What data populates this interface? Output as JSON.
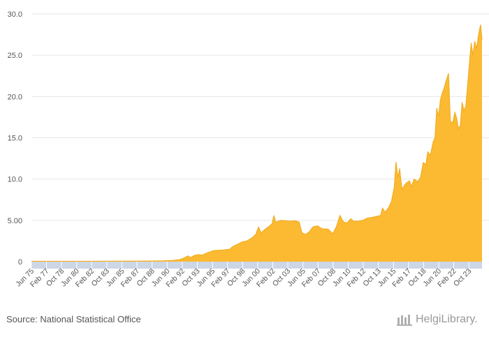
{
  "source": "Source: National Statistical Office",
  "brand": {
    "name": "HelgiLibrary."
  },
  "colors": {
    "fill": "#FBBA32",
    "stroke": "#F2A818",
    "axis_band": "#CDD6E6",
    "grid": "#E6E6E6"
  },
  "chart_data": {
    "type": "area",
    "title": "",
    "xlabel": "",
    "ylabel": "",
    "ylim": [
      0,
      30
    ],
    "yticks": [
      {
        "value": 0,
        "label": "0"
      },
      {
        "value": 5,
        "label": "5.00"
      },
      {
        "value": 10,
        "label": "10.0"
      },
      {
        "value": 15,
        "label": "15.0"
      },
      {
        "value": 20,
        "label": "20.0"
      },
      {
        "value": 25,
        "label": "25.0"
      },
      {
        "value": 30,
        "label": "30.0"
      }
    ],
    "xlim": [
      1975.42,
      2025.2
    ],
    "xticks": [
      {
        "label": "Jun 75",
        "t": 1975.42
      },
      {
        "label": "Feb 77",
        "t": 1977.08
      },
      {
        "label": "Oct 78",
        "t": 1978.75
      },
      {
        "label": "Jun 80",
        "t": 1980.42
      },
      {
        "label": "Feb 82",
        "t": 1982.08
      },
      {
        "label": "Oct 83",
        "t": 1983.75
      },
      {
        "label": "Jun 85",
        "t": 1985.42
      },
      {
        "label": "Feb 87",
        "t": 1987.08
      },
      {
        "label": "Oct 88",
        "t": 1988.75
      },
      {
        "label": "Jun 90",
        "t": 1990.42
      },
      {
        "label": "Feb 92",
        "t": 1992.08
      },
      {
        "label": "Oct 93",
        "t": 1993.75
      },
      {
        "label": "Jun 95",
        "t": 1995.42
      },
      {
        "label": "Feb 97",
        "t": 1997.08
      },
      {
        "label": "Oct 98",
        "t": 1998.75
      },
      {
        "label": "Jun 00",
        "t": 2000.42
      },
      {
        "label": "Feb 02",
        "t": 2002.08
      },
      {
        "label": "Oct 03",
        "t": 2003.75
      },
      {
        "label": "Jun 05",
        "t": 2005.42
      },
      {
        "label": "Feb 07",
        "t": 2007.08
      },
      {
        "label": "Oct 08",
        "t": 2008.75
      },
      {
        "label": "Jun 10",
        "t": 2010.42
      },
      {
        "label": "Feb 12",
        "t": 2012.08
      },
      {
        "label": "Oct 13",
        "t": 2013.75
      },
      {
        "label": "Jun 15",
        "t": 2015.42
      },
      {
        "label": "Feb 17",
        "t": 2017.08
      },
      {
        "label": "Oct 18",
        "t": 2018.75
      },
      {
        "label": "Jun 20",
        "t": 2020.42
      },
      {
        "label": "Feb 22",
        "t": 2022.08
      },
      {
        "label": "Oct 23",
        "t": 2023.75
      }
    ],
    "series": [
      {
        "name": "value",
        "points": [
          [
            1975.42,
            0.05
          ],
          [
            1980.0,
            0.05
          ],
          [
            1985.0,
            0.06
          ],
          [
            1988.0,
            0.08
          ],
          [
            1990.0,
            0.1
          ],
          [
            1991.0,
            0.15
          ],
          [
            1991.8,
            0.25
          ],
          [
            1992.3,
            0.45
          ],
          [
            1992.7,
            0.7
          ],
          [
            1993.0,
            0.5
          ],
          [
            1993.4,
            0.75
          ],
          [
            1993.8,
            0.85
          ],
          [
            1994.3,
            0.8
          ],
          [
            1994.8,
            1.05
          ],
          [
            1995.3,
            1.25
          ],
          [
            1995.6,
            1.35
          ],
          [
            1996.5,
            1.4
          ],
          [
            1997.3,
            1.5
          ],
          [
            1997.7,
            1.85
          ],
          [
            1998.2,
            2.1
          ],
          [
            1998.7,
            2.4
          ],
          [
            1999.2,
            2.5
          ],
          [
            1999.8,
            2.9
          ],
          [
            2000.2,
            3.3
          ],
          [
            2000.5,
            4.2
          ],
          [
            2000.8,
            3.5
          ],
          [
            2001.2,
            3.9
          ],
          [
            2001.7,
            4.3
          ],
          [
            2002.0,
            4.6
          ],
          [
            2002.2,
            5.6
          ],
          [
            2002.4,
            4.8
          ],
          [
            2003.0,
            5.0
          ],
          [
            2004.0,
            4.9
          ],
          [
            2004.6,
            4.95
          ],
          [
            2005.0,
            4.8
          ],
          [
            2005.3,
            3.5
          ],
          [
            2005.7,
            3.3
          ],
          [
            2006.1,
            3.6
          ],
          [
            2006.5,
            4.2
          ],
          [
            2007.0,
            4.35
          ],
          [
            2007.5,
            4.0
          ],
          [
            2008.2,
            3.95
          ],
          [
            2008.7,
            3.4
          ],
          [
            2009.1,
            4.2
          ],
          [
            2009.5,
            5.6
          ],
          [
            2009.9,
            4.8
          ],
          [
            2010.3,
            4.7
          ],
          [
            2010.7,
            5.2
          ],
          [
            2011.0,
            4.9
          ],
          [
            2011.5,
            4.9
          ],
          [
            2012.0,
            5.0
          ],
          [
            2012.6,
            5.3
          ],
          [
            2013.0,
            5.35
          ],
          [
            2013.6,
            5.5
          ],
          [
            2014.0,
            5.6
          ],
          [
            2014.2,
            6.5
          ],
          [
            2014.5,
            6.0
          ],
          [
            2014.9,
            6.6
          ],
          [
            2015.2,
            7.3
          ],
          [
            2015.5,
            9.0
          ],
          [
            2015.7,
            12.1
          ],
          [
            2015.9,
            10.2
          ],
          [
            2016.1,
            11.3
          ],
          [
            2016.35,
            8.8
          ],
          [
            2016.8,
            9.5
          ],
          [
            2017.2,
            9.8
          ],
          [
            2017.4,
            9.1
          ],
          [
            2017.7,
            10.0
          ],
          [
            2018.1,
            9.7
          ],
          [
            2018.4,
            10.2
          ],
          [
            2018.7,
            12.0
          ],
          [
            2019.0,
            11.8
          ],
          [
            2019.2,
            13.3
          ],
          [
            2019.5,
            12.9
          ],
          [
            2019.8,
            14.5
          ],
          [
            2020.0,
            15.0
          ],
          [
            2020.2,
            18.6
          ],
          [
            2020.4,
            17.6
          ],
          [
            2020.6,
            19.6
          ],
          [
            2020.8,
            20.4
          ],
          [
            2021.0,
            21.0
          ],
          [
            2021.2,
            21.8
          ],
          [
            2021.5,
            22.8
          ],
          [
            2021.7,
            17.0
          ],
          [
            2021.95,
            16.8
          ],
          [
            2022.2,
            18.1
          ],
          [
            2022.4,
            17.4
          ],
          [
            2022.6,
            16.1
          ],
          [
            2022.8,
            16.5
          ],
          [
            2023.0,
            19.3
          ],
          [
            2023.2,
            18.3
          ],
          [
            2023.4,
            18.8
          ],
          [
            2023.6,
            21.3
          ],
          [
            2023.8,
            24.0
          ],
          [
            2024.0,
            26.5
          ],
          [
            2024.2,
            25.0
          ],
          [
            2024.4,
            26.7
          ],
          [
            2024.6,
            25.8
          ],
          [
            2024.8,
            27.4
          ],
          [
            2024.95,
            28.3
          ],
          [
            2025.05,
            28.7
          ],
          [
            2025.2,
            26.9
          ]
        ]
      }
    ]
  }
}
